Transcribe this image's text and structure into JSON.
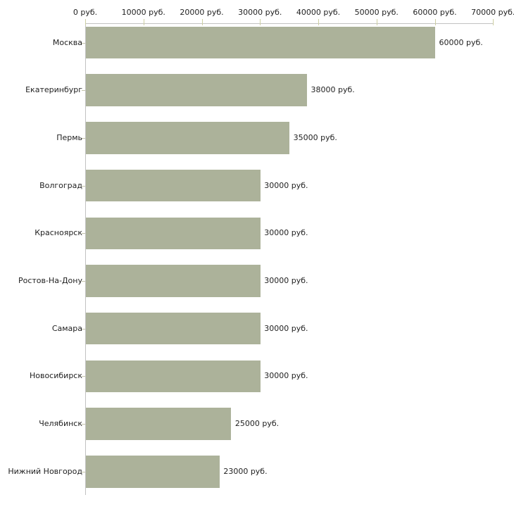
{
  "chart_data": {
    "type": "bar",
    "orientation": "horizontal",
    "title": "",
    "categories": [
      "Москва",
      "Екатеринбург",
      "Пермь",
      "Волгоград",
      "Красноярск",
      "Ростов-На-Дону",
      "Самара",
      "Новосибирск",
      "Челябинск",
      "Нижний Новгород"
    ],
    "values": [
      60000,
      38000,
      35000,
      30000,
      30000,
      30000,
      30000,
      30000,
      25000,
      23000
    ],
    "value_labels": [
      "60000 руб.",
      "38000 руб.",
      "35000 руб.",
      "30000 руб.",
      "30000 руб.",
      "30000 руб.",
      "30000 руб.",
      "30000 руб.",
      "25000 руб.",
      "23000 руб."
    ],
    "x_ticks": [
      0,
      10000,
      20000,
      30000,
      40000,
      50000,
      60000,
      70000
    ],
    "x_tick_labels": [
      "0 руб.",
      "10000 руб.",
      "20000 руб.",
      "30000 руб.",
      "40000 руб.",
      "50000 руб.",
      "60000 руб.",
      "70000 руб."
    ],
    "xlim": [
      0,
      70000
    ],
    "unit": "руб.",
    "xlabel": "",
    "ylabel": "",
    "grid": false,
    "legend": false,
    "axis_position": "top",
    "colors": {
      "bar_fill": "#acb29a",
      "axis_line": "#c2c2c2",
      "tick_mark": "#cdcfa3",
      "category_tick": "#c4c4ab",
      "text": "#222222",
      "background": "#ffffff"
    }
  }
}
